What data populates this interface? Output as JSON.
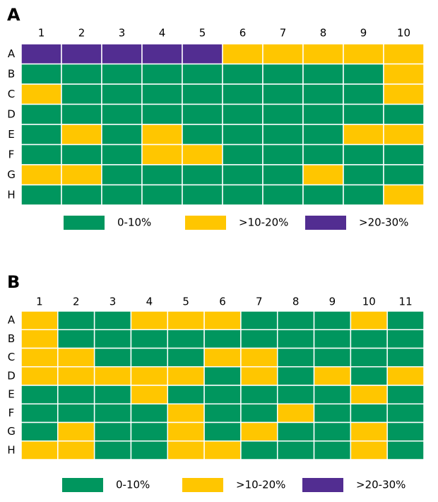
{
  "chart_data": [
    {
      "type": "heatmap",
      "panel": "A",
      "columns": [
        1,
        2,
        3,
        4,
        5,
        6,
        7,
        8,
        9,
        10
      ],
      "rows": [
        "A",
        "B",
        "C",
        "D",
        "E",
        "F",
        "G",
        "H"
      ],
      "legend": [
        {
          "name": "0-10%",
          "color": "#00965e"
        },
        {
          "name": ">10-20%",
          "color": "#ffc600"
        },
        {
          "name": ">20-30%",
          "color": "#522d91"
        }
      ],
      "cells": [
        [
          2,
          2,
          2,
          2,
          2,
          1,
          1,
          1,
          1,
          1
        ],
        [
          0,
          0,
          0,
          0,
          0,
          0,
          0,
          0,
          0,
          1
        ],
        [
          1,
          0,
          0,
          0,
          0,
          0,
          0,
          0,
          0,
          1
        ],
        [
          0,
          0,
          0,
          0,
          0,
          0,
          0,
          0,
          0,
          0
        ],
        [
          0,
          1,
          0,
          1,
          0,
          0,
          0,
          0,
          1,
          1
        ],
        [
          0,
          0,
          0,
          1,
          1,
          0,
          0,
          0,
          0,
          0
        ],
        [
          1,
          1,
          0,
          0,
          0,
          0,
          0,
          1,
          0,
          0
        ],
        [
          0,
          0,
          0,
          0,
          0,
          0,
          0,
          0,
          0,
          1
        ]
      ]
    },
    {
      "type": "heatmap",
      "panel": "B",
      "columns": [
        1,
        2,
        3,
        4,
        5,
        6,
        7,
        8,
        9,
        10,
        11
      ],
      "rows": [
        "A",
        "B",
        "C",
        "D",
        "E",
        "F",
        "G",
        "H"
      ],
      "legend": [
        {
          "name": "0-10%",
          "color": "#00965e"
        },
        {
          "name": ">10-20%",
          "color": "#ffc600"
        },
        {
          "name": ">20-30%",
          "color": "#522d91"
        }
      ],
      "cells": [
        [
          1,
          0,
          0,
          1,
          1,
          1,
          0,
          0,
          0,
          1,
          0
        ],
        [
          1,
          0,
          0,
          0,
          0,
          0,
          0,
          0,
          0,
          0,
          0
        ],
        [
          1,
          1,
          0,
          0,
          0,
          1,
          1,
          0,
          0,
          0,
          0
        ],
        [
          1,
          1,
          1,
          1,
          1,
          0,
          1,
          0,
          1,
          0,
          1
        ],
        [
          0,
          0,
          0,
          1,
          0,
          0,
          0,
          0,
          0,
          1,
          0
        ],
        [
          0,
          0,
          0,
          0,
          1,
          0,
          0,
          1,
          0,
          0,
          0
        ],
        [
          0,
          1,
          0,
          0,
          1,
          0,
          1,
          0,
          0,
          1,
          0
        ],
        [
          1,
          1,
          0,
          0,
          1,
          1,
          0,
          0,
          0,
          1,
          0
        ]
      ]
    }
  ]
}
